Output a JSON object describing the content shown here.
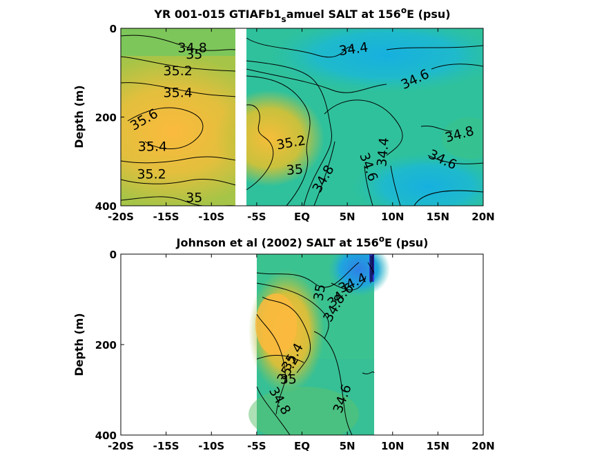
{
  "chart_data": [
    {
      "type": "heatmap",
      "title": "YR 001-015 GTIAFb1_samuel SALT at 156°E (psu)",
      "title_parts": {
        "pre": "YR 001-015 GTIAFb1",
        "sub": "s",
        "mid": "amuel SALT at 156",
        "sup": "o",
        "post": "E (psu)"
      },
      "ylabel": "Depth (m)",
      "xlim": [
        -20,
        20
      ],
      "ylim": [
        0,
        400
      ],
      "y_reversed": true,
      "x_ticks": [
        {
          "v": -20,
          "label": "-20S"
        },
        {
          "v": -15,
          "label": "-15S"
        },
        {
          "v": -10,
          "label": "-10S"
        },
        {
          "v": -5,
          "label": "-5S"
        },
        {
          "v": 0,
          "label": "EQ"
        },
        {
          "v": 5,
          "label": "5N"
        },
        {
          "v": 10,
          "label": "10N"
        },
        {
          "v": 15,
          "label": "15N"
        },
        {
          "v": 20,
          "label": "20N"
        }
      ],
      "y_ticks": [
        {
          "v": 0,
          "label": "0"
        },
        {
          "v": 200,
          "label": "200"
        },
        {
          "v": 400,
          "label": "400"
        }
      ],
      "gap_x": [
        -7.3,
        -6.7
      ],
      "contour_levels": [
        "34.4",
        "34.6",
        "34.8",
        "35",
        "35.2",
        "35.4",
        "35.6"
      ],
      "contour_labels": [
        {
          "text": "34.8",
          "x": -12.1,
          "y": 45,
          "rot": 0
        },
        {
          "text": "35",
          "x": -11.9,
          "y": 60,
          "rot": 0
        },
        {
          "text": "35.2",
          "x": -13.7,
          "y": 97,
          "rot": 0
        },
        {
          "text": "35.4",
          "x": -13.7,
          "y": 146,
          "rot": 0
        },
        {
          "text": "35.6",
          "x": -17.4,
          "y": 207,
          "rot": -30
        },
        {
          "text": "35.4",
          "x": -16.5,
          "y": 268,
          "rot": 0
        },
        {
          "text": "35.2",
          "x": -16.6,
          "y": 330,
          "rot": 0
        },
        {
          "text": "35",
          "x": -11.9,
          "y": 383,
          "rot": 0
        },
        {
          "text": "34.4",
          "x": 5.7,
          "y": 48,
          "rot": -8
        },
        {
          "text": "34.6",
          "x": 12.5,
          "y": 116,
          "rot": -25
        },
        {
          "text": "34.8",
          "x": 17.4,
          "y": 240,
          "rot": -15
        },
        {
          "text": "35.2",
          "x": -1.2,
          "y": 259,
          "rot": -10
        },
        {
          "text": "35",
          "x": -0.8,
          "y": 320,
          "rot": -5
        },
        {
          "text": "34.8",
          "x": 2.4,
          "y": 340,
          "rot": -60
        },
        {
          "text": "34.6",
          "x": 7.3,
          "y": 313,
          "rot": 70
        },
        {
          "text": "34.4",
          "x": 9.0,
          "y": 279,
          "rot": -85
        },
        {
          "text": "34.6",
          "x": 15.5,
          "y": 297,
          "rot": 25
        }
      ]
    },
    {
      "type": "heatmap",
      "title": "Johnson et al (2002) SALT at 156°E (psu)",
      "title_parts": {
        "pre": "Johnson et al (2002) SALT at 156",
        "sub": "",
        "mid": "",
        "sup": "o",
        "post": "E (psu)"
      },
      "ylabel": "Depth (m)",
      "xlim": [
        -20,
        20
      ],
      "ylim": [
        0,
        400
      ],
      "y_reversed": true,
      "data_x_range": [
        -5,
        8
      ],
      "x_ticks": [
        {
          "v": -20,
          "label": "-20S"
        },
        {
          "v": -15,
          "label": "-15S"
        },
        {
          "v": -10,
          "label": "-10S"
        },
        {
          "v": -5,
          "label": "-5S"
        },
        {
          "v": 0,
          "label": "EQ"
        },
        {
          "v": 5,
          "label": "5N"
        },
        {
          "v": 10,
          "label": "10N"
        },
        {
          "v": 15,
          "label": "15N"
        },
        {
          "v": 20,
          "label": "20N"
        }
      ],
      "y_ticks": [
        {
          "v": 0,
          "label": "0"
        },
        {
          "v": 200,
          "label": "200"
        },
        {
          "v": 400,
          "label": "400"
        }
      ],
      "contour_labels": [
        {
          "text": "34.4",
          "x": 5.6,
          "y": 65,
          "rot": -25
        },
        {
          "text": "34.6",
          "x": 4.3,
          "y": 92,
          "rot": -40
        },
        {
          "text": "34.8",
          "x": 3.6,
          "y": 120,
          "rot": -60
        },
        {
          "text": "35",
          "x": 2.0,
          "y": 85,
          "rot": -80
        },
        {
          "text": "35.4",
          "x": -1.0,
          "y": 228,
          "rot": -60
        },
        {
          "text": "35.2",
          "x": -1.5,
          "y": 255,
          "rot": -60
        },
        {
          "text": "35",
          "x": -1.5,
          "y": 278,
          "rot": 0
        },
        {
          "text": "34.8",
          "x": -2.5,
          "y": 325,
          "rot": 60
        },
        {
          "text": "34.6",
          "x": 4.5,
          "y": 320,
          "rot": -70
        }
      ]
    }
  ]
}
